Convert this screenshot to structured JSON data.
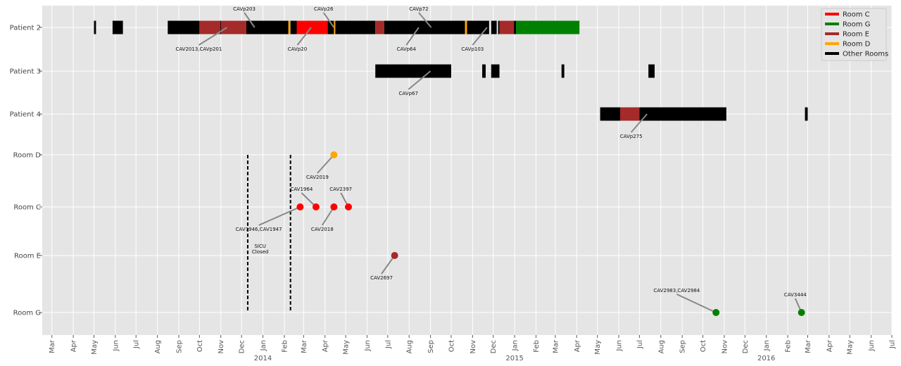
{
  "chart_data": {
    "type": "timeline",
    "title": "",
    "xlabel": "",
    "ylabel": "",
    "x_range": [
      "2013-02-15",
      "2016-07-01"
    ],
    "grid": true,
    "legend_position": "top-right",
    "colors": {
      "Room C": "#ff0000",
      "Room G": "#008000",
      "Room E": "#a52a2a",
      "Room D": "#ffa500",
      "Other Rooms": "#000000",
      "bar_background": "#e5e5e5"
    },
    "legend": [
      {
        "label": "Room C",
        "color": "#ff0000"
      },
      {
        "label": "Room G",
        "color": "#008000"
      },
      {
        "label": "Room E",
        "color": "#a52a2a"
      },
      {
        "label": "Room D",
        "color": "#ffa500"
      },
      {
        "label": "Other Rooms",
        "color": "#000000"
      }
    ],
    "rows": [
      "Patient 2",
      "Patient 3",
      "Patient 4",
      "Room D",
      "Room C",
      "Room E",
      "Room G"
    ],
    "x_ticks": [
      {
        "date": "2013-03-01",
        "label": "Mar"
      },
      {
        "date": "2013-04-01",
        "label": "Apr"
      },
      {
        "date": "2013-05-01",
        "label": "May"
      },
      {
        "date": "2013-06-01",
        "label": "Jun"
      },
      {
        "date": "2013-07-01",
        "label": "Jul"
      },
      {
        "date": "2013-08-01",
        "label": "Aug"
      },
      {
        "date": "2013-09-01",
        "label": "Sep"
      },
      {
        "date": "2013-10-01",
        "label": "Oct"
      },
      {
        "date": "2013-11-01",
        "label": "Nov"
      },
      {
        "date": "2013-12-01",
        "label": "Dec"
      },
      {
        "date": "2014-01-01",
        "label": "Jan"
      },
      {
        "date": "2014-02-01",
        "label": "Feb"
      },
      {
        "date": "2014-03-01",
        "label": "Mar"
      },
      {
        "date": "2014-04-01",
        "label": "Apr"
      },
      {
        "date": "2014-05-01",
        "label": "May"
      },
      {
        "date": "2014-06-01",
        "label": "Jun"
      },
      {
        "date": "2014-07-01",
        "label": "Jul"
      },
      {
        "date": "2014-08-01",
        "label": "Aug"
      },
      {
        "date": "2014-09-01",
        "label": "Sep"
      },
      {
        "date": "2014-10-01",
        "label": "Oct"
      },
      {
        "date": "2014-11-01",
        "label": "Nov"
      },
      {
        "date": "2014-12-01",
        "label": "Dec"
      },
      {
        "date": "2015-01-01",
        "label": "Jan"
      },
      {
        "date": "2015-02-01",
        "label": "Feb"
      },
      {
        "date": "2015-03-01",
        "label": "Mar"
      },
      {
        "date": "2015-04-01",
        "label": "Apr"
      },
      {
        "date": "2015-05-01",
        "label": "May"
      },
      {
        "date": "2015-06-01",
        "label": "Jun"
      },
      {
        "date": "2015-07-01",
        "label": "Jul"
      },
      {
        "date": "2015-08-01",
        "label": "Aug"
      },
      {
        "date": "2015-09-01",
        "label": "Sep"
      },
      {
        "date": "2015-10-01",
        "label": "Oct"
      },
      {
        "date": "2015-11-01",
        "label": "Nov"
      },
      {
        "date": "2015-12-01",
        "label": "Dec"
      },
      {
        "date": "2016-01-01",
        "label": "Jan"
      },
      {
        "date": "2016-02-01",
        "label": "Feb"
      },
      {
        "date": "2016-03-01",
        "label": "Mar"
      },
      {
        "date": "2016-04-01",
        "label": "Apr"
      },
      {
        "date": "2016-05-01",
        "label": "May"
      },
      {
        "date": "2016-06-01",
        "label": "Jun"
      },
      {
        "date": "2016-07-01",
        "label": "Jul"
      }
    ],
    "year_labels": [
      {
        "date": "2014-01-01",
        "label": "2014"
      },
      {
        "date": "2015-01-01",
        "label": "2015"
      },
      {
        "date": "2016-01-01",
        "label": "2016"
      }
    ],
    "stays": [
      {
        "row": "Patient 2",
        "start": "2013-05-01",
        "end": "2013-05-04",
        "room": "Other Rooms"
      },
      {
        "row": "Patient 2",
        "start": "2013-05-28",
        "end": "2013-06-12",
        "room": "Other Rooms"
      },
      {
        "row": "Patient 2",
        "start": "2013-08-16",
        "end": "2013-10-01",
        "room": "Other Rooms"
      },
      {
        "row": "Patient 2",
        "start": "2013-10-01",
        "end": "2013-10-31",
        "room": "Room E"
      },
      {
        "row": "Patient 2",
        "start": "2013-10-31",
        "end": "2013-11-01",
        "room": "Other Rooms"
      },
      {
        "row": "Patient 2",
        "start": "2013-11-01",
        "end": "2013-12-08",
        "room": "Room E"
      },
      {
        "row": "Patient 2",
        "start": "2013-12-08",
        "end": "2014-02-07",
        "room": "Other Rooms"
      },
      {
        "row": "Patient 2",
        "start": "2014-02-07",
        "end": "2014-02-10",
        "room": "Room D"
      },
      {
        "row": "Patient 2",
        "start": "2014-02-10",
        "end": "2014-02-19",
        "room": "Other Rooms"
      },
      {
        "row": "Patient 2",
        "start": "2014-02-19",
        "end": "2014-04-05",
        "room": "Room C"
      },
      {
        "row": "Patient 2",
        "start": "2014-04-05",
        "end": "2014-04-14",
        "room": "Other Rooms"
      },
      {
        "row": "Patient 2",
        "start": "2014-04-14",
        "end": "2014-04-16",
        "room": "Room D"
      },
      {
        "row": "Patient 2",
        "start": "2014-04-16",
        "end": "2014-06-13",
        "room": "Other Rooms"
      },
      {
        "row": "Patient 2",
        "start": "2014-06-13",
        "end": "2014-06-26",
        "room": "Room E"
      },
      {
        "row": "Patient 2",
        "start": "2014-06-26",
        "end": "2014-10-21",
        "room": "Other Rooms"
      },
      {
        "row": "Patient 2",
        "start": "2014-10-21",
        "end": "2014-10-24",
        "room": "Room D"
      },
      {
        "row": "Patient 2",
        "start": "2014-10-24",
        "end": "2014-11-25",
        "room": "Other Rooms"
      },
      {
        "row": "Patient 2",
        "start": "2014-11-28",
        "end": "2014-12-06",
        "room": "Other Rooms"
      },
      {
        "row": "Patient 2",
        "start": "2014-12-08",
        "end": "2014-12-10",
        "room": "Other Rooms"
      },
      {
        "row": "Patient 2",
        "start": "2014-12-10",
        "end": "2014-12-31",
        "room": "Room E"
      },
      {
        "row": "Patient 2",
        "start": "2014-12-31",
        "end": "2015-01-03",
        "room": "Other Rooms"
      },
      {
        "row": "Patient 2",
        "start": "2015-01-03",
        "end": "2015-04-05",
        "room": "Room G"
      },
      {
        "row": "Patient 3",
        "start": "2014-06-13",
        "end": "2014-10-01",
        "room": "Other Rooms"
      },
      {
        "row": "Patient 3",
        "start": "2014-11-15",
        "end": "2014-11-20",
        "room": "Other Rooms"
      },
      {
        "row": "Patient 3",
        "start": "2014-11-28",
        "end": "2014-12-10",
        "room": "Other Rooms"
      },
      {
        "row": "Patient 3",
        "start": "2015-03-10",
        "end": "2015-03-14",
        "room": "Other Rooms"
      },
      {
        "row": "Patient 3",
        "start": "2015-07-14",
        "end": "2015-07-23",
        "room": "Other Rooms"
      },
      {
        "row": "Patient 4",
        "start": "2015-05-05",
        "end": "2015-06-03",
        "room": "Other Rooms"
      },
      {
        "row": "Patient 4",
        "start": "2015-06-03",
        "end": "2015-07-01",
        "room": "Room E"
      },
      {
        "row": "Patient 4",
        "start": "2015-07-01",
        "end": "2015-11-04",
        "room": "Other Rooms"
      },
      {
        "row": "Patient 4",
        "start": "2016-02-26",
        "end": "2016-03-01",
        "room": "Other Rooms"
      }
    ],
    "points": [
      {
        "row": "Room D",
        "date": "2014-04-14",
        "room": "Room D"
      },
      {
        "row": "Room C",
        "date": "2014-02-24",
        "room": "Room C"
      },
      {
        "row": "Room C",
        "date": "2014-03-19",
        "room": "Room C"
      },
      {
        "row": "Room C",
        "date": "2014-04-14",
        "room": "Room C"
      },
      {
        "row": "Room C",
        "date": "2014-05-05",
        "room": "Room C"
      },
      {
        "row": "Room E",
        "date": "2014-07-11",
        "room": "Room E"
      },
      {
        "row": "Room G",
        "date": "2015-10-20",
        "room": "Room G"
      },
      {
        "row": "Room G",
        "date": "2016-02-21",
        "room": "Room G"
      }
    ],
    "vlines": [
      {
        "date": "2013-12-10",
        "from_row": "Room D",
        "to_row": "Room G"
      },
      {
        "date": "2014-02-10",
        "from_row": "Room D",
        "to_row": "Room G"
      }
    ],
    "annotations": [
      {
        "label": "CAVp203",
        "row": "Patient 2",
        "date": "2013-12-20",
        "text_date": "2013-12-05",
        "text_dy": -24
      },
      {
        "label": "CAV2013,CAVp201",
        "row": "Patient 2",
        "date": "2013-11-10",
        "text_date": "2013-09-30",
        "text_dy": 33
      },
      {
        "label": "CAVp26",
        "row": "Patient 2",
        "date": "2014-04-14",
        "text_date": "2014-03-30",
        "text_dy": -24
      },
      {
        "label": "CAVp20",
        "row": "Patient 2",
        "date": "2014-03-12",
        "text_date": "2014-02-20",
        "text_dy": 33
      },
      {
        "label": "CAVp72",
        "row": "Patient 2",
        "date": "2014-09-02",
        "text_date": "2014-08-15",
        "text_dy": -24
      },
      {
        "label": "CAVp64",
        "row": "Patient 2",
        "date": "2014-08-15",
        "text_date": "2014-07-28",
        "text_dy": 33
      },
      {
        "label": "CAVp103",
        "row": "Patient 2",
        "date": "2014-11-22",
        "text_date": "2014-11-01",
        "text_dy": 33
      },
      {
        "label": "CAVp67",
        "row": "Patient 3",
        "date": "2014-09-01",
        "text_date": "2014-07-31",
        "text_dy": 34
      },
      {
        "label": "CAVp275",
        "row": "Patient 4",
        "date": "2015-07-12",
        "text_date": "2015-06-19",
        "text_dy": 34
      },
      {
        "label": "CAV2019",
        "row": "Room D",
        "date": "2014-04-14",
        "text_date": "2014-03-21",
        "text_dy": 34
      },
      {
        "label": "CAV1964",
        "row": "Room C",
        "date": "2014-03-19",
        "text_date": "2014-02-26",
        "text_dy": -23
      },
      {
        "label": "CAV2397",
        "row": "Room C",
        "date": "2014-05-05",
        "text_date": "2014-04-24",
        "text_dy": -23
      },
      {
        "label": "CAV1946,CAV1947",
        "row": "Room C",
        "date": "2014-02-24",
        "text_date": "2013-12-26",
        "text_dy": 34
      },
      {
        "label": "CAV2018",
        "row": "Room C",
        "date": "2014-04-14",
        "text_date": "2014-03-28",
        "text_dy": 34
      },
      {
        "label": "CAV2697",
        "row": "Room E",
        "date": "2014-07-11",
        "text_date": "2014-06-22",
        "text_dy": 34
      },
      {
        "label": "CAV2983,CAV2984",
        "row": "Room G",
        "date": "2015-10-20",
        "text_date": "2015-08-24",
        "text_dy": -29
      },
      {
        "label": "CAV3444",
        "row": "Room G",
        "date": "2016-02-21",
        "text_date": "2016-02-12",
        "text_dy": -23
      }
    ],
    "text_notes": [
      {
        "lines": [
          "SICU",
          "Closed"
        ],
        "date": "2013-12-28",
        "row": "Room C",
        "dy": 58
      }
    ]
  }
}
